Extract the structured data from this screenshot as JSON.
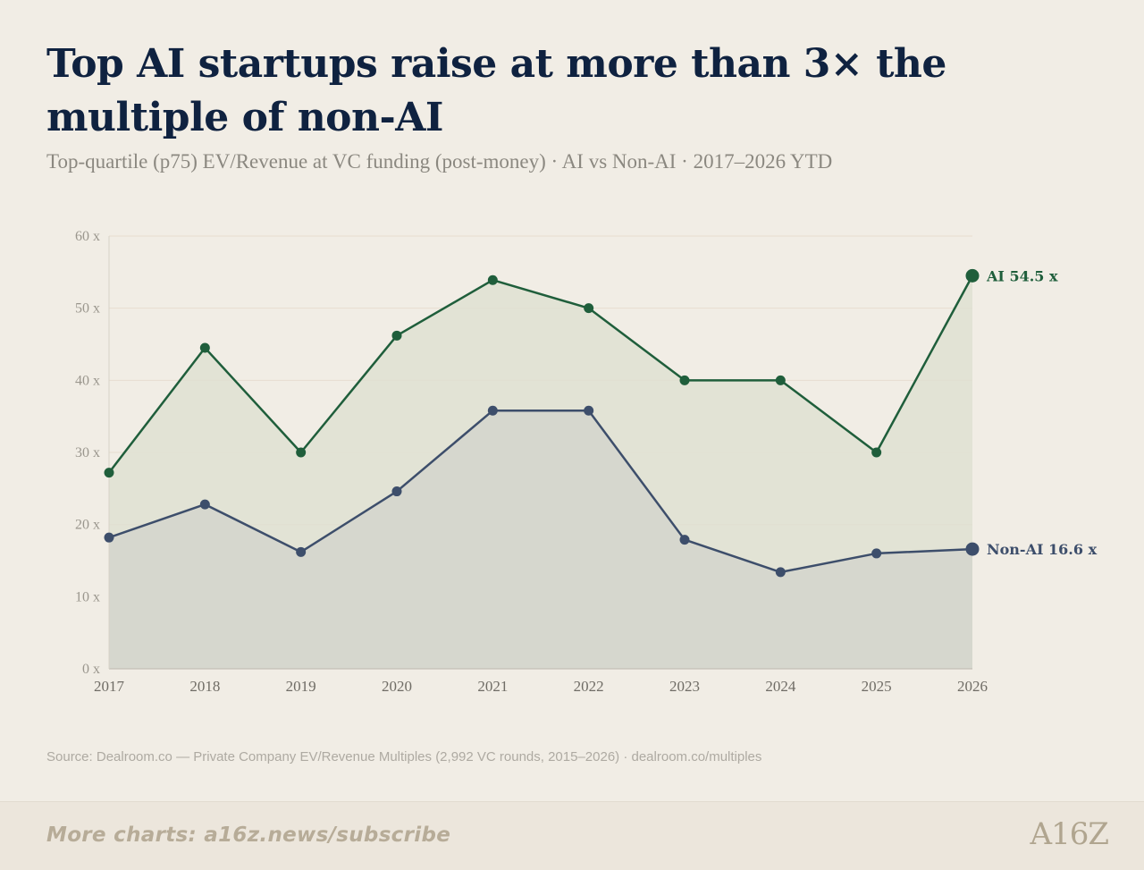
{
  "title": "Top AI startups raise at more than 3× the multiple of non-AI",
  "subtitle": "Top-quartile (p75) EV/Revenue at VC funding (post-money) · AI vs Non-AI · 2017–2026 YTD",
  "source": "Source: Dealroom.co — Private Company EV/Revenue Multiples (2,992 VC rounds, 2015–2026) · dealroom.co/multiples",
  "footer": {
    "link_text": "More charts: a16z.news/subscribe",
    "logo_text": "A16Z"
  },
  "colors": {
    "ai": "#1f5e3b",
    "non_ai": "#3d4e6b",
    "ai_fill": "#dfe1d2",
    "non_ai_fill": "#d3d5cc",
    "grid": "#e6ddd0",
    "tick": "#9a968d"
  },
  "chart_data": {
    "type": "area",
    "x": [
      2017,
      2018,
      2019,
      2020,
      2021,
      2022,
      2023,
      2024,
      2025,
      2026
    ],
    "ylim": [
      0,
      60
    ],
    "yticks": [
      0,
      10,
      20,
      30,
      40,
      50,
      60
    ],
    "ytick_labels": [
      "0 x",
      "10 x",
      "20 x",
      "30 x",
      "40 x",
      "50 x",
      "60 x"
    ],
    "grid": true,
    "series": [
      {
        "name": "AI",
        "values": [
          27.2,
          44.5,
          30.0,
          46.2,
          53.9,
          50.0,
          40.0,
          40.0,
          30.0,
          54.5
        ],
        "end_label": "AI 54.5 x"
      },
      {
        "name": "Non-AI",
        "values": [
          18.2,
          22.8,
          16.2,
          24.6,
          35.8,
          35.8,
          17.9,
          13.4,
          16.0,
          16.6
        ],
        "end_label": "Non-AI 16.6 x"
      }
    ]
  }
}
